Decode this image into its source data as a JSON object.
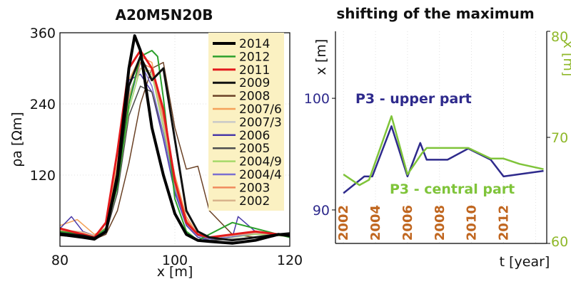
{
  "colors": {
    "left_background": "#ffffff",
    "legend_background": "#fbf1c2",
    "upper_series": "#2e2a8c",
    "central_series": "#7fc43a",
    "year_labels": "#c0661f",
    "axis_right_secondary": "#8fb82a"
  },
  "chart_data": [
    {
      "type": "line",
      "title": "A20M5N20B",
      "xlabel": "x [m]",
      "ylabel": "ρa [Ωm]",
      "xlim": [
        80,
        120
      ],
      "ylim": [
        0,
        360
      ],
      "xticks": [
        80,
        100,
        120
      ],
      "yticks": [
        120,
        240,
        360
      ],
      "grid": true,
      "legend_placement": "top-right",
      "series": [
        {
          "name": "2014",
          "color": "#000000",
          "width": 4,
          "x": [
            80,
            84,
            86,
            88,
            90,
            92,
            93,
            94,
            96,
            98,
            100,
            102,
            104,
            106,
            110,
            114,
            118,
            120
          ],
          "y": [
            20,
            15,
            12,
            25,
            120,
            300,
            355,
            330,
            200,
            120,
            55,
            20,
            10,
            8,
            5,
            10,
            20,
            18
          ]
        },
        {
          "name": "2012",
          "color": "#2ca02c",
          "width": 2,
          "x": [
            80,
            84,
            86,
            88,
            90,
            92,
            94,
            96,
            97,
            98,
            100,
            102,
            104,
            106,
            110,
            114,
            118,
            120
          ],
          "y": [
            25,
            20,
            15,
            30,
            100,
            240,
            320,
            330,
            320,
            250,
            80,
            25,
            10,
            20,
            40,
            30,
            20,
            15
          ]
        },
        {
          "name": "2011",
          "color": "#e31a1c",
          "width": 3,
          "x": [
            80,
            84,
            86,
            88,
            90,
            92,
            94,
            96,
            98,
            100,
            102,
            104,
            106,
            110,
            114,
            118,
            120
          ],
          "y": [
            30,
            20,
            15,
            40,
            160,
            300,
            330,
            300,
            230,
            110,
            40,
            20,
            15,
            20,
            25,
            20,
            18
          ]
        },
        {
          "name": "2009",
          "color": "#111111",
          "width": 3,
          "x": [
            80,
            84,
            86,
            88,
            90,
            92,
            94,
            96,
            98,
            100,
            102,
            104,
            106,
            110,
            114,
            118,
            120
          ],
          "y": [
            22,
            18,
            14,
            25,
            110,
            270,
            320,
            280,
            300,
            180,
            60,
            25,
            15,
            10,
            15,
            20,
            22
          ]
        },
        {
          "name": "2008",
          "color": "#6b4226",
          "width": 1.5,
          "x": [
            80,
            84,
            86,
            88,
            90,
            92,
            94,
            96,
            98,
            100,
            102,
            104,
            106,
            110,
            114,
            118,
            120
          ],
          "y": [
            18,
            15,
            12,
            20,
            60,
            140,
            240,
            300,
            310,
            200,
            130,
            135,
            60,
            20,
            15,
            18,
            20
          ]
        },
        {
          "name": "2007/6",
          "color": "#f4a259",
          "width": 1.5,
          "x": [
            80,
            83,
            86,
            88,
            90,
            92,
            94,
            96,
            98,
            100,
            102,
            104,
            106,
            110,
            114,
            118,
            120
          ],
          "y": [
            35,
            45,
            20,
            30,
            140,
            280,
            320,
            310,
            220,
            120,
            50,
            20,
            15,
            20,
            25,
            20,
            18
          ]
        },
        {
          "name": "2007/3",
          "color": "#c9c9c9",
          "width": 1.5,
          "x": [
            80,
            84,
            86,
            88,
            90,
            92,
            94,
            96,
            98,
            100,
            102,
            104,
            106,
            110,
            114,
            118,
            120
          ],
          "y": [
            25,
            20,
            15,
            28,
            120,
            260,
            300,
            290,
            210,
            110,
            45,
            20,
            15,
            18,
            22,
            20,
            18
          ]
        },
        {
          "name": "2006",
          "color": "#4a3aa8",
          "width": 1.5,
          "x": [
            80,
            82,
            84,
            86,
            88,
            90,
            92,
            94,
            96,
            98,
            100,
            102,
            104,
            106,
            110,
            111,
            114,
            118,
            120
          ],
          "y": [
            30,
            50,
            25,
            18,
            30,
            130,
            280,
            290,
            260,
            180,
            90,
            35,
            15,
            10,
            15,
            50,
            25,
            20,
            18
          ]
        },
        {
          "name": "2005",
          "color": "#4d4d4d",
          "width": 1.5,
          "x": [
            80,
            84,
            86,
            88,
            90,
            92,
            94,
            96,
            98,
            100,
            102,
            104,
            106,
            110,
            114,
            118,
            120
          ],
          "y": [
            20,
            16,
            12,
            22,
            90,
            220,
            270,
            260,
            190,
            100,
            40,
            20,
            10,
            12,
            15,
            18,
            20
          ]
        },
        {
          "name": "2004/9",
          "color": "#a6d96a",
          "width": 1.5,
          "x": [
            80,
            84,
            86,
            88,
            90,
            92,
            94,
            96,
            98,
            100,
            102,
            104,
            106,
            110,
            114,
            118,
            120
          ],
          "y": [
            22,
            18,
            14,
            26,
            100,
            230,
            300,
            290,
            200,
            100,
            40,
            18,
            12,
            15,
            20,
            18,
            16
          ]
        },
        {
          "name": "2004/4",
          "color": "#7b6fd0",
          "width": 1.5,
          "x": [
            80,
            84,
            86,
            88,
            90,
            92,
            94,
            96,
            98,
            100,
            102,
            104,
            106,
            110,
            114,
            118,
            120
          ],
          "y": [
            24,
            20,
            15,
            28,
            110,
            240,
            310,
            270,
            190,
            95,
            38,
            18,
            12,
            16,
            22,
            20,
            18
          ]
        },
        {
          "name": "2003",
          "color": "#f08a5d",
          "width": 1.5,
          "x": [
            80,
            84,
            86,
            88,
            90,
            92,
            94,
            96,
            98,
            100,
            102,
            104,
            106,
            110,
            114,
            118,
            120
          ],
          "y": [
            26,
            22,
            16,
            30,
            125,
            250,
            310,
            300,
            215,
            110,
            45,
            20,
            14,
            18,
            24,
            20,
            18
          ]
        },
        {
          "name": "2002",
          "color": "#d9b38c",
          "width": 1.5,
          "x": [
            80,
            84,
            86,
            88,
            90,
            92,
            94,
            96,
            98,
            100,
            102,
            104,
            106,
            110,
            114,
            118,
            120
          ],
          "y": [
            28,
            24,
            18,
            32,
            130,
            255,
            300,
            295,
            210,
            105,
            42,
            20,
            14,
            18,
            22,
            20,
            18
          ]
        }
      ]
    },
    {
      "type": "line",
      "title": "shifting of the maximum",
      "xlabel": "t [year]",
      "ylabel": "x [m]",
      "ylabel_right": "x [m]",
      "xlim": [
        2001.5,
        2014.7
      ],
      "xticks": [
        2002,
        2004,
        2006,
        2008,
        2010,
        2012
      ],
      "ylim": [
        87,
        106
      ],
      "yticks": [
        90,
        100
      ],
      "ylim_right": [
        60,
        80
      ],
      "yticks_right": [
        60,
        70,
        80
      ],
      "grid": true,
      "series": [
        {
          "name": "P3 - upper part",
          "axis": "left",
          "x": [
            2002,
            2003.3,
            2003.8,
            2005,
            2006,
            2006.8,
            2007.2,
            2008.5,
            2009.8,
            2011.2,
            2012,
            2013,
            2014.5
          ],
          "y": [
            91.5,
            93.0,
            93.0,
            97.5,
            93.0,
            96.0,
            94.5,
            94.5,
            95.5,
            94.5,
            93.0,
            93.2,
            93.5
          ]
        },
        {
          "name": "P3 - central part",
          "axis": "right",
          "x": [
            2002,
            2003,
            2003.6,
            2005,
            2006,
            2006.9,
            2007.2,
            2008.5,
            2009.8,
            2011.2,
            2012,
            2013,
            2014.5
          ],
          "y": [
            66.5,
            65.5,
            66.0,
            72.0,
            66.5,
            68.5,
            69.0,
            69.0,
            69.0,
            68.0,
            68.0,
            67.5,
            67.0
          ]
        }
      ],
      "annotations": [
        "P3 - upper part",
        "P3 - central part"
      ]
    }
  ]
}
